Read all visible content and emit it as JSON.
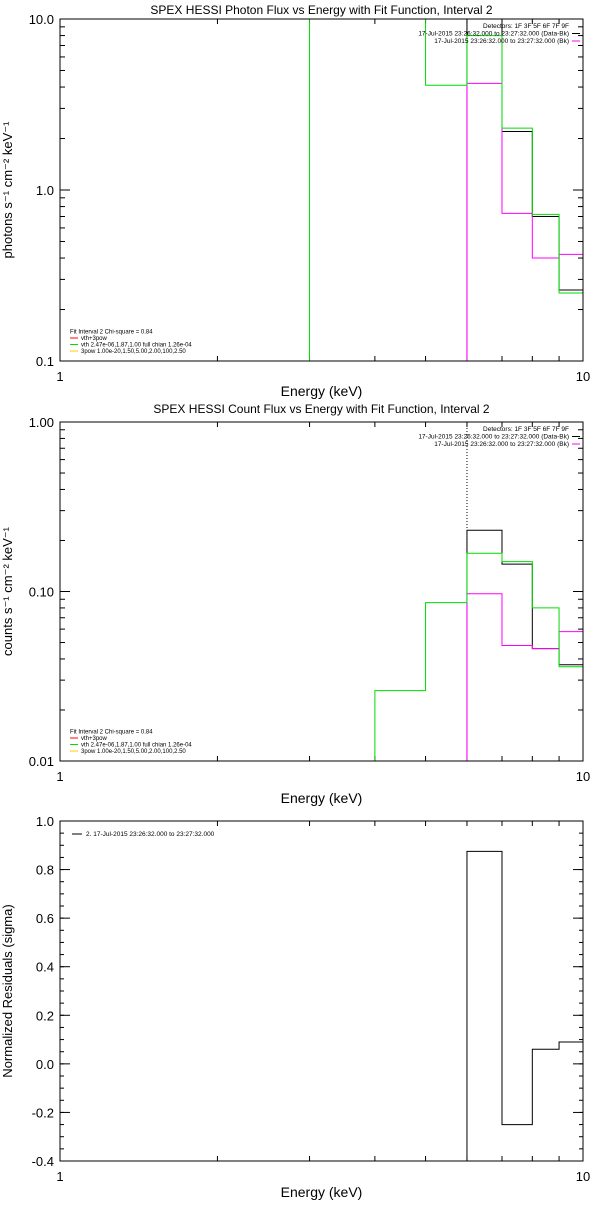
{
  "colors": {
    "data": "#000000",
    "background": "#ff00ff",
    "total_fit": "#00dd00",
    "component_vth": "#ff0000",
    "component_3pow": "#ffcc00",
    "axes": "#000000"
  },
  "chart_data": [
    {
      "type": "line",
      "title": "SPEX HESSI Photon Flux vs Energy with Fit Function, Interval 2",
      "xlabel": "Energy (keV)",
      "ylabel": "photons s⁻¹ cm⁻² keV⁻¹",
      "xscale": "log",
      "yscale": "log",
      "xlim": [
        1,
        10
      ],
      "ylim": [
        0.1,
        10
      ],
      "xticks": [
        {
          "v": 1,
          "label": "1"
        },
        {
          "v": 10,
          "label": "10"
        }
      ],
      "yticks": [
        {
          "v": 0.1,
          "label": "0.1"
        },
        {
          "v": 1,
          "label": "1.0"
        },
        {
          "v": 10,
          "label": "10.0"
        }
      ],
      "legend_top": [
        {
          "text": "Detectors: 1F 3F 5F 6F 7F 9F",
          "color": ""
        },
        {
          "text": "17-Jul-2015 23:26:32.000 to 23:27:32.000 (Data-Bk)",
          "color": "#000000"
        },
        {
          "text": "17-Jul-2015 23:26:32.000 to 23:27:32.000 (Bk)",
          "color": "#ff00ff"
        }
      ],
      "legend_bottom": [
        {
          "text": "Fit Interval  2    Chi-square = 0.84",
          "color": ""
        },
        {
          "text": "vth+3pow",
          "color": "#ff0000"
        },
        {
          "text": "vth 2.47e-06,1.87,1.00   full chian 1.26e-04",
          "color": "#00dd00"
        },
        {
          "text": "3pow 1.00e-20,1.50,5.00,2.00,100,2.50",
          "color": "#ffcc00"
        }
      ],
      "vline": 6,
      "series": [
        {
          "name": "Data-Bk",
          "color": "#000000",
          "edges": [
            6,
            7,
            8,
            9,
            10
          ],
          "values": [
            10.0,
            2.2,
            0.7,
            0.26
          ]
        },
        {
          "name": "Bk",
          "color": "#ff00ff",
          "edges": [
            6,
            7,
            8,
            9,
            10
          ],
          "values": [
            4.2,
            0.73,
            0.4,
            0.42
          ]
        },
        {
          "name": "vth+3pow",
          "color": "#00dd00",
          "edges": [
            3,
            4,
            5,
            6,
            7,
            8,
            9,
            10
          ],
          "values": [
            10.0,
            10.0,
            4.1,
            8.0,
            2.3,
            0.72,
            0.25
          ]
        }
      ]
    },
    {
      "type": "line",
      "title": "SPEX HESSI Count Flux vs Energy with Fit Function, Interval 2",
      "xlabel": "Energy (keV)",
      "ylabel": "counts s⁻¹ cm⁻² keV⁻¹",
      "xscale": "log",
      "yscale": "log",
      "xlim": [
        1,
        10
      ],
      "ylim": [
        0.01,
        1
      ],
      "xticks": [
        {
          "v": 1,
          "label": "1"
        },
        {
          "v": 10,
          "label": "10"
        }
      ],
      "yticks": [
        {
          "v": 0.01,
          "label": "0.01"
        },
        {
          "v": 0.1,
          "label": "0.10"
        },
        {
          "v": 1,
          "label": "1.00"
        }
      ],
      "legend_top": [
        {
          "text": "Detectors: 1F 3F 5F 6F 7F 9F",
          "color": ""
        },
        {
          "text": "17-Jul-2015 23:26:32.000 to 23:27:32.000 (Data-Bk)",
          "color": "#000000"
        },
        {
          "text": "17-Jul-2015 23:26:32.000 to 23:27:32.000 (Bk)",
          "color": "#ff00ff"
        }
      ],
      "legend_bottom": [
        {
          "text": "Fit Interval  2    Chi-square = 0.84",
          "color": ""
        },
        {
          "text": "vth+3pow",
          "color": "#ff0000"
        },
        {
          "text": "vth 2.47e-06,1.87,1.00   full chian 1.26e-04",
          "color": "#00dd00"
        },
        {
          "text": "3pow 1.00e-20,1.50,5.00,2.00,100,2.50",
          "color": "#ffcc00"
        }
      ],
      "vline": 6,
      "series": [
        {
          "name": "Data-Bk",
          "color": "#000000",
          "edges": [
            6,
            7,
            8,
            9,
            10
          ],
          "values": [
            0.23,
            0.145,
            0.046,
            0.037
          ]
        },
        {
          "name": "Bk",
          "color": "#ff00ff",
          "edges": [
            6,
            7,
            8,
            9,
            10
          ],
          "values": [
            0.097,
            0.048,
            0.046,
            0.058
          ]
        },
        {
          "name": "vth+3pow",
          "color": "#00dd00",
          "edges": [
            4,
            5,
            6,
            7,
            8,
            9,
            10
          ],
          "values": [
            0.026,
            0.086,
            0.168,
            0.15,
            0.08,
            0.036
          ]
        }
      ]
    },
    {
      "type": "line",
      "title": "",
      "xlabel": "Energy (keV)",
      "ylabel": "Normalized Residuals (sigma)",
      "xscale": "log",
      "yscale": "linear",
      "xlim": [
        1,
        10
      ],
      "ylim": [
        -0.4,
        1.0
      ],
      "xticks": [
        {
          "v": 1,
          "label": "1"
        },
        {
          "v": 10,
          "label": "10"
        }
      ],
      "yticks": [
        {
          "v": -0.4,
          "label": "-0.4"
        },
        {
          "v": -0.2,
          "label": "-0.2"
        },
        {
          "v": 0,
          "label": "0.0"
        },
        {
          "v": 0.2,
          "label": "0.2"
        },
        {
          "v": 0.4,
          "label": "0.4"
        },
        {
          "v": 0.6,
          "label": "0.6"
        },
        {
          "v": 0.8,
          "label": "0.8"
        },
        {
          "v": 1.0,
          "label": "1.0"
        }
      ],
      "legend_top_left": [
        {
          "text": "2. 17-Jul-2015 23:26:32.000 to 23:27:32.000",
          "color": "#000000"
        }
      ],
      "series": [
        {
          "name": "",
          "color": "#000000",
          "edges": [
            6,
            7,
            8,
            9,
            10
          ],
          "values": [
            0.875,
            -0.25,
            0.06,
            0.09
          ]
        }
      ]
    }
  ]
}
